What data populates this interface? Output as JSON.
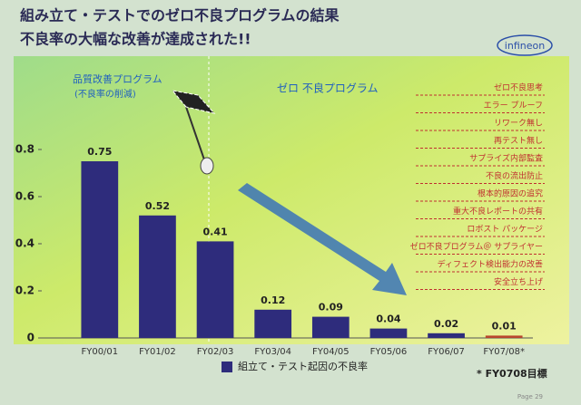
{
  "slide": {
    "title": "組み立て・テストでのゼロ不良プログラムの結果",
    "subtitle": "不良率の大幅な改善が達成された!!",
    "logo": "infineon",
    "page": "Page 29"
  },
  "chart_data": {
    "type": "bar",
    "categories": [
      "FY00/01",
      "FY01/02",
      "FY02/03",
      "FY03/04",
      "FY04/05",
      "FY05/06",
      "FY06/07",
      "FY07/08*"
    ],
    "series": [
      {
        "name": "組立て・テスト起因の不良率",
        "color": "#2e2c7c",
        "values": [
          0.75,
          0.52,
          0.41,
          0.12,
          0.09,
          0.04,
          0.02,
          0.01
        ]
      }
    ],
    "bar_colors": [
      "#2e2c7c",
      "#2e2c7c",
      "#2e2c7c",
      "#2e2c7c",
      "#2e2c7c",
      "#2e2c7c",
      "#2e2c7c",
      "#b8462e"
    ],
    "ylim": [
      0,
      1.2
    ],
    "yticks": [
      0,
      0.2,
      0.4,
      0.6,
      0.8
    ],
    "phase1": [
      "品質改善プログラム",
      "(不良率の削減)"
    ],
    "phase2": "ゼロ 不良プログラム",
    "measures": [
      "ゼロ不良思考",
      "エラー プルーフ",
      "リワーク無し",
      "再テスト無し",
      "サプライズ内部監査",
      "不良の流出防止",
      "根本的原因の追究",
      "重大不良レポートの共有",
      "ロボスト パッケージ",
      "ゼロ不良プログラム＠ サプライヤー",
      "ディフェクト検出能力の改善",
      "安全立ち上げ"
    ],
    "footnote": "* FY0708目標"
  }
}
